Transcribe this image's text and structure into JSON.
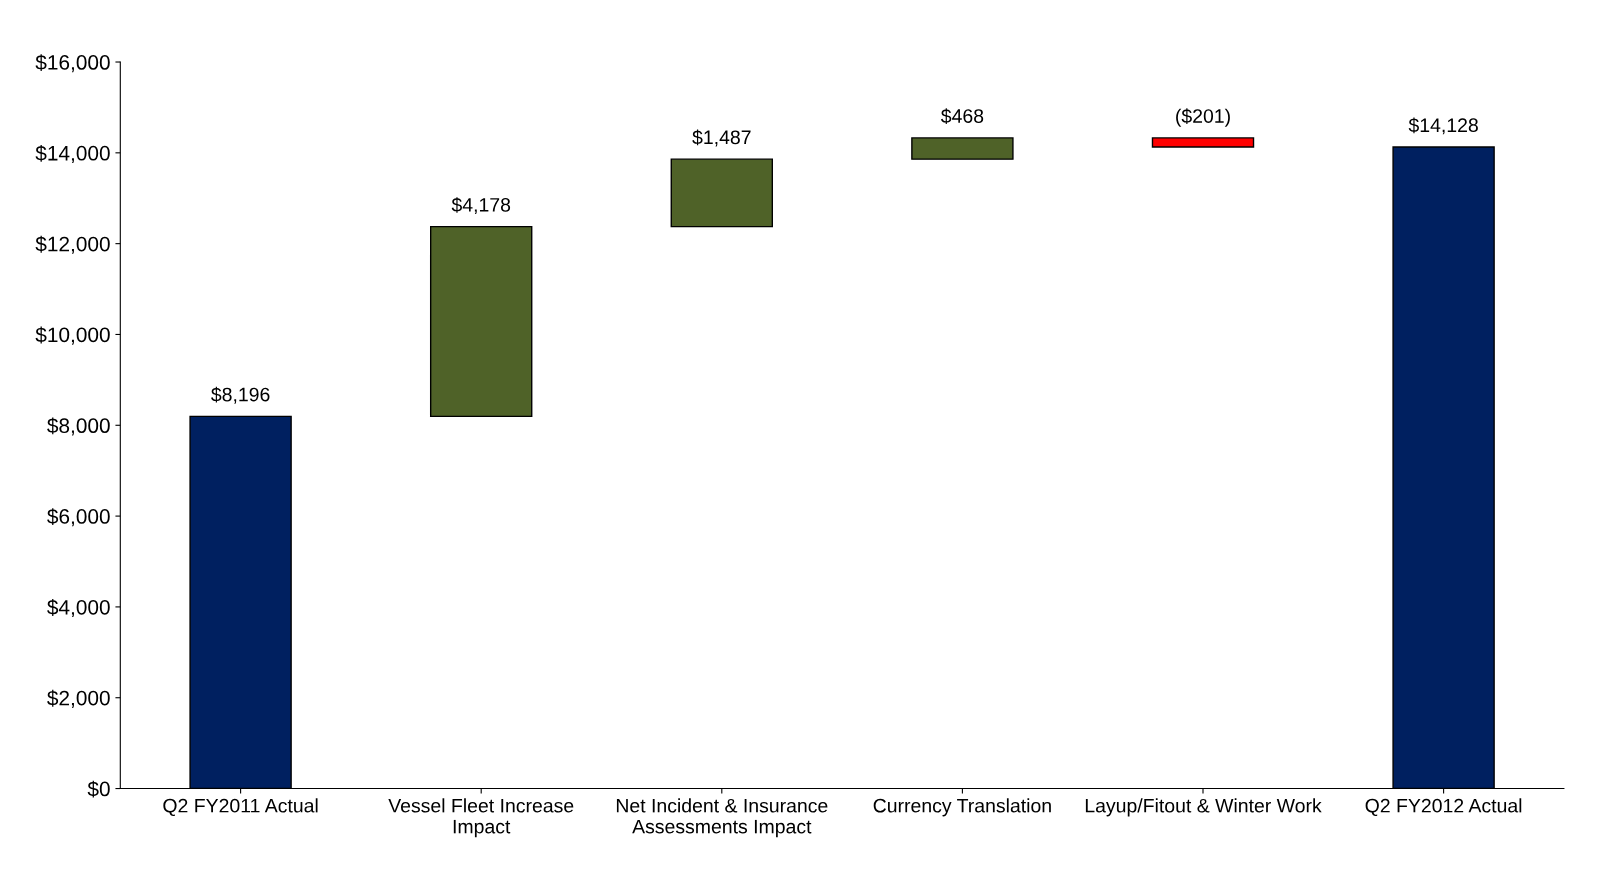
{
  "chart_data": {
    "type": "bar",
    "categories": [
      "Q2 FY2011 Actual",
      "Vessel Fleet Increase Impact",
      "Net Incident & Insurance Assessments Impact",
      "Currency Translation",
      "Layup/Fitout & Winter Work",
      "Q2 FY2012 Actual"
    ],
    "values": [
      8196,
      4178,
      1487,
      468,
      -201,
      14128
    ],
    "base": [
      0,
      8196,
      12374,
      13861,
      14329,
      0
    ],
    "colors": [
      "#002060",
      "#4f6228",
      "#4f6228",
      "#4f6228",
      "#ff0000",
      "#002060"
    ],
    "value_labels": [
      "$8,196",
      "$4,178",
      "$1,487",
      "$468",
      "($201)",
      "$14,128"
    ],
    "ylim": [
      0,
      16000
    ],
    "yticks": [
      {
        "value": 0,
        "label": "$0"
      },
      {
        "value": 2000,
        "label": "$2,000"
      },
      {
        "value": 4000,
        "label": "$4,000"
      },
      {
        "value": 6000,
        "label": "$6,000"
      },
      {
        "value": 8000,
        "label": "$8,000"
      },
      {
        "value": 10000,
        "label": "$10,000"
      },
      {
        "value": 12000,
        "label": "$12,000"
      },
      {
        "value": 14000,
        "label": "$14,000"
      },
      {
        "value": 16000,
        "label": "$16,000"
      }
    ],
    "grid": false,
    "legend": false
  }
}
